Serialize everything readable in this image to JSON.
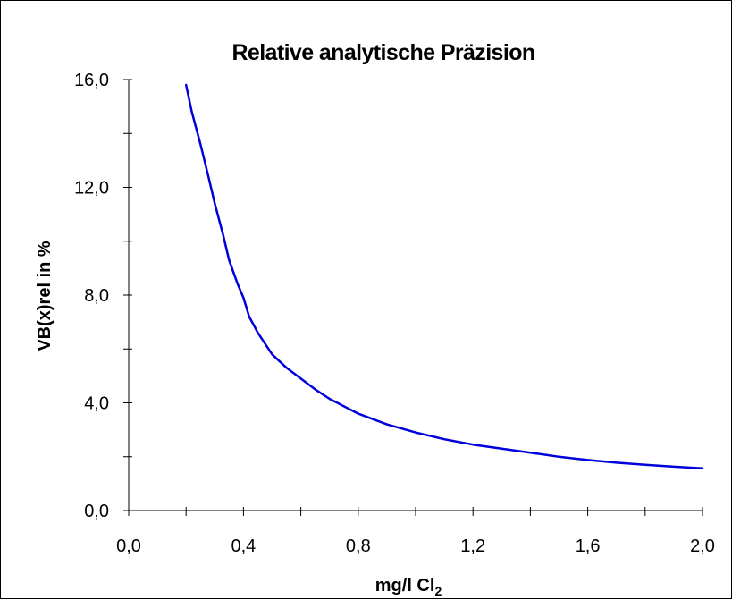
{
  "chart_data": {
    "type": "line",
    "title": "Relative analytische Präzision",
    "xlabel": "mg/l Cl",
    "xlabel_subscript": "2",
    "ylabel": "VB(x)rel in %",
    "xlim": [
      0.0,
      2.0
    ],
    "ylim": [
      0.0,
      16.0
    ],
    "x_ticks": [
      0.0,
      0.4,
      0.8,
      1.2,
      1.6,
      2.0
    ],
    "x_tick_labels": [
      "0,0",
      "0,4",
      "0,8",
      "1,2",
      "1,6",
      "2,0"
    ],
    "x_minor_step": 0.2,
    "y_ticks": [
      0.0,
      4.0,
      8.0,
      12.0,
      16.0
    ],
    "y_tick_labels": [
      "0,0",
      "4,0",
      "8,0",
      "12,0",
      "16,0"
    ],
    "y_minor_step": 2.0,
    "grid": false,
    "legend": "none",
    "series": [
      {
        "color": "#0000dd",
        "x": [
          0.2,
          0.22,
          0.25,
          0.28,
          0.3,
          0.33,
          0.35,
          0.38,
          0.4,
          0.42,
          0.45,
          0.5,
          0.55,
          0.6,
          0.65,
          0.7,
          0.8,
          0.9,
          1.0,
          1.1,
          1.2,
          1.3,
          1.4,
          1.5,
          1.6,
          1.7,
          1.8,
          1.9,
          2.0
        ],
        "y": [
          15.8,
          14.8,
          13.6,
          12.3,
          11.4,
          10.2,
          9.3,
          8.4,
          7.9,
          7.2,
          6.6,
          5.8,
          5.3,
          4.9,
          4.5,
          4.15,
          3.6,
          3.2,
          2.9,
          2.65,
          2.45,
          2.3,
          2.15,
          2.0,
          1.88,
          1.78,
          1.7,
          1.63,
          1.57
        ]
      }
    ]
  }
}
